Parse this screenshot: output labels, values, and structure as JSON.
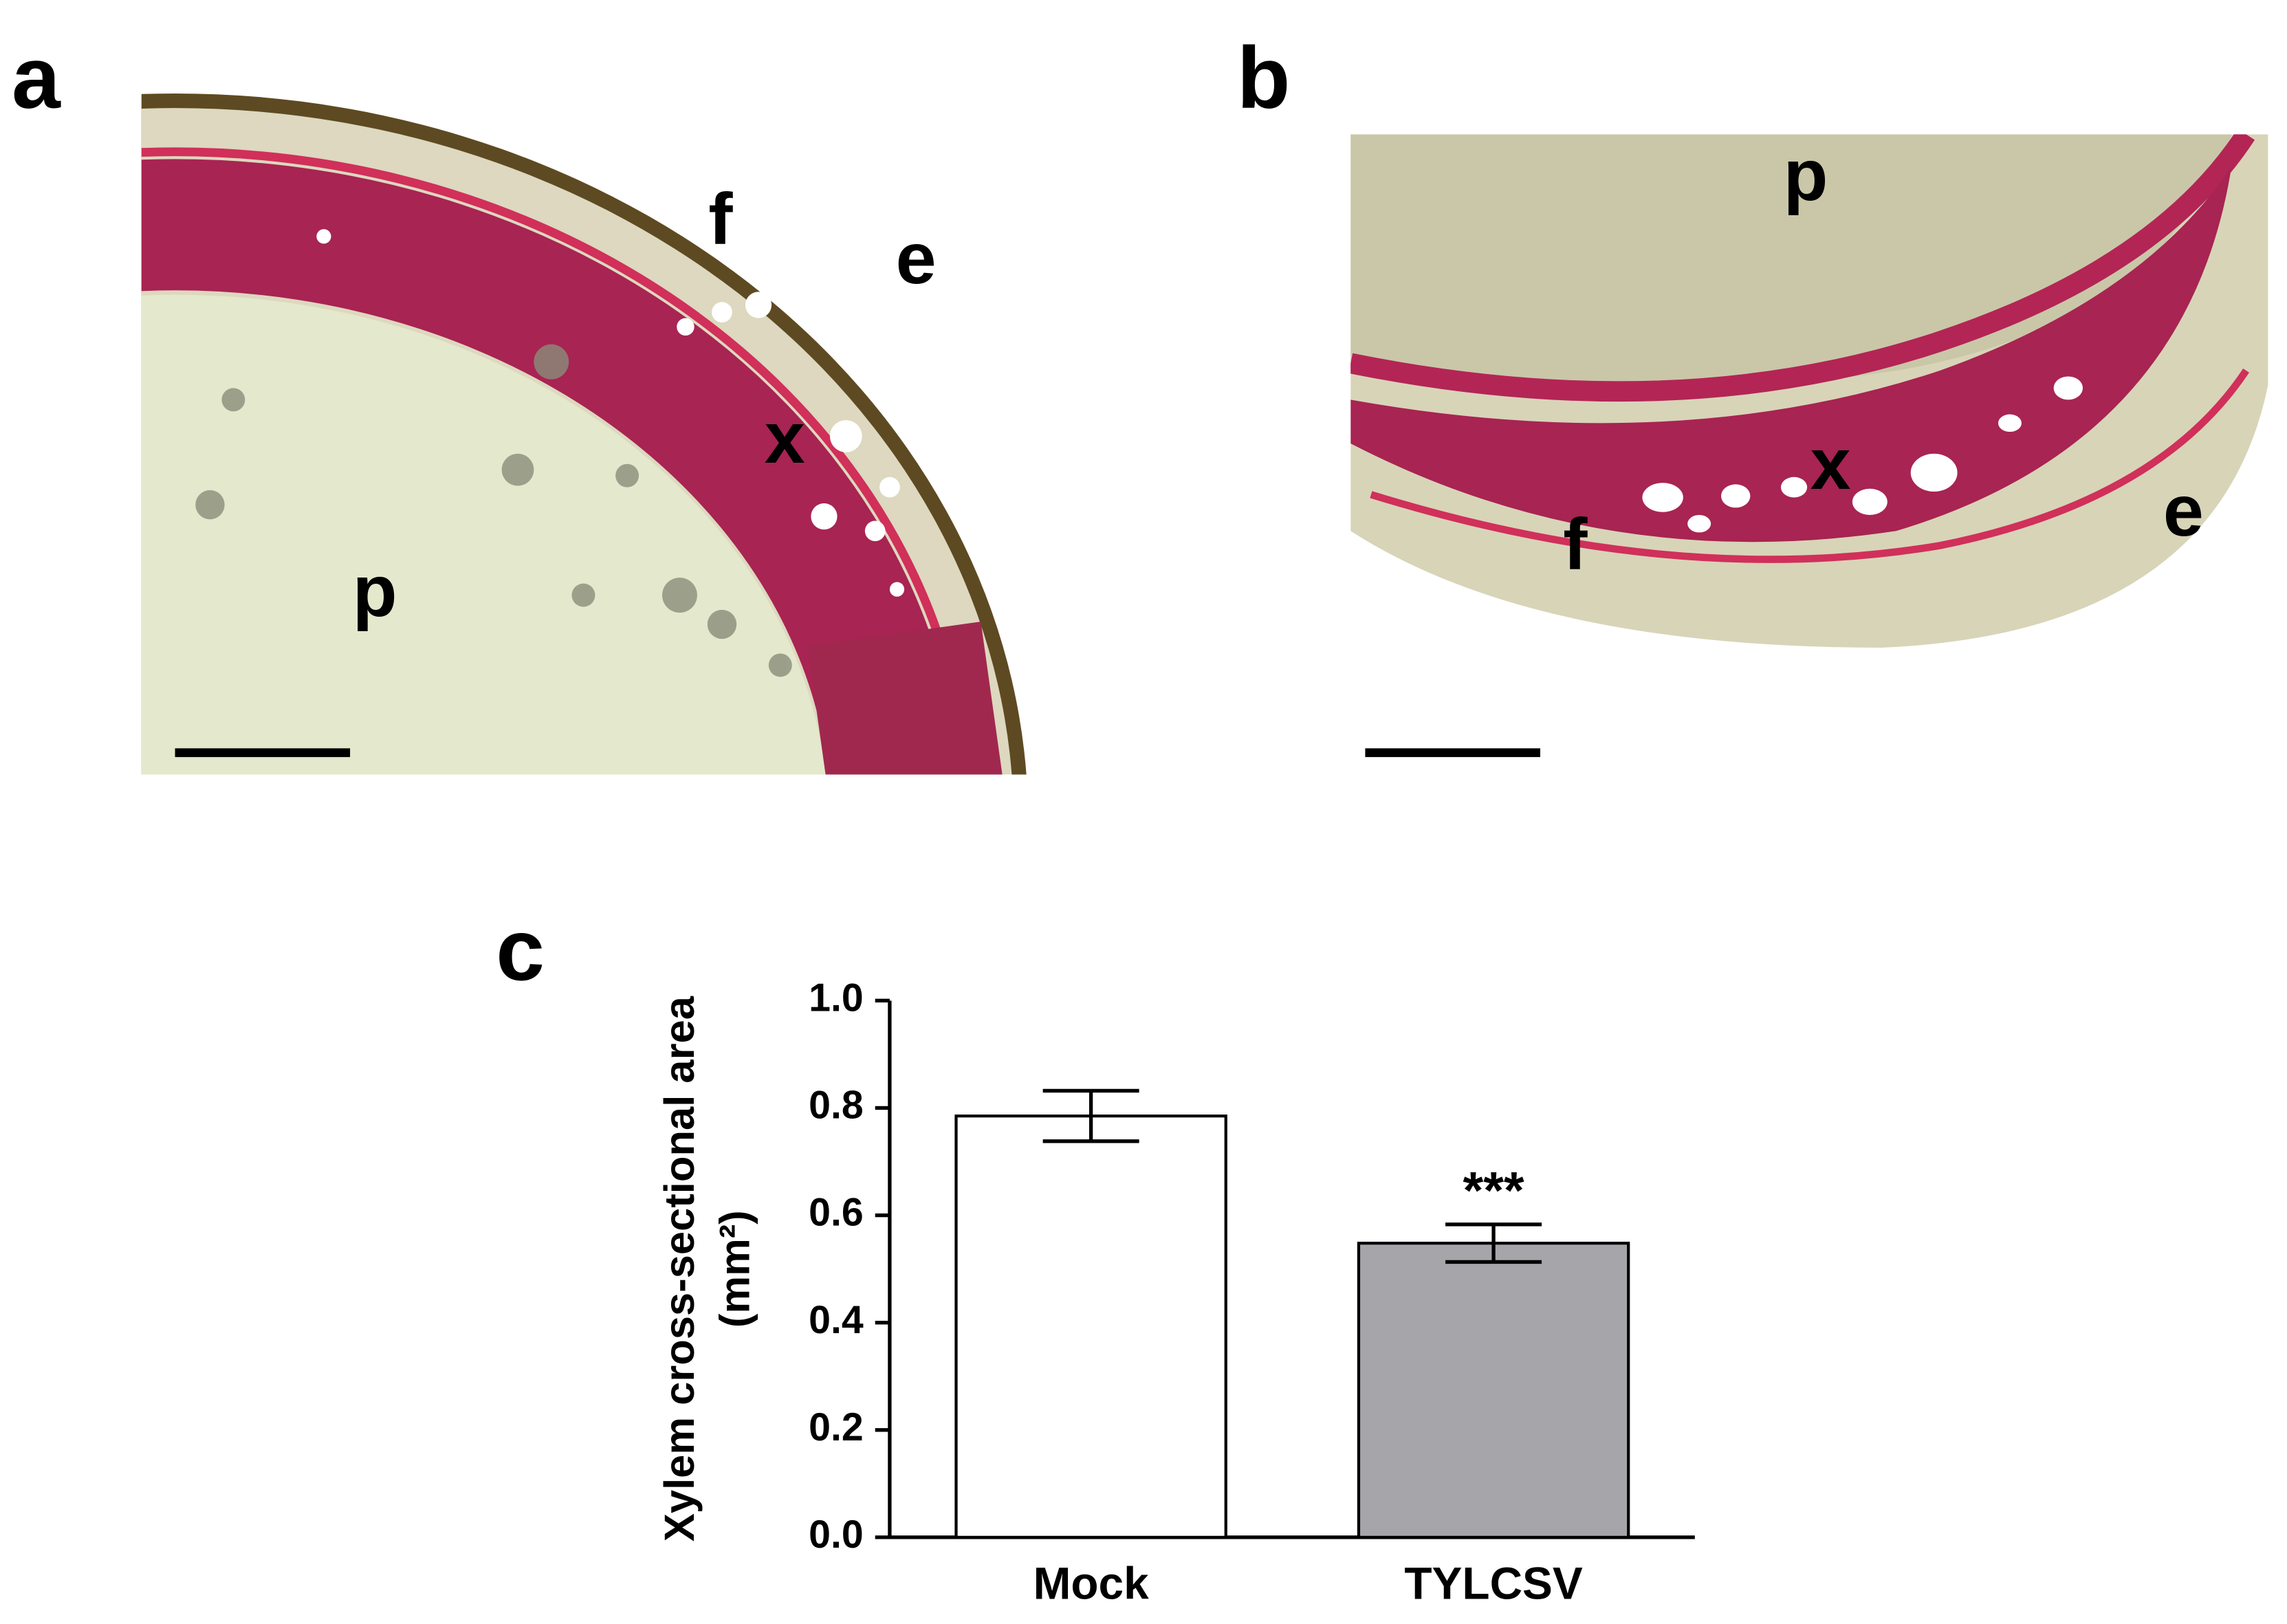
{
  "panel_labels": [
    "a",
    "b",
    "c"
  ],
  "micrographs": [
    {
      "labels": [
        "f",
        "e",
        "x",
        "p"
      ]
    },
    {
      "labels": [
        "p",
        "x",
        "f",
        "e"
      ]
    }
  ],
  "chart_data": {
    "type": "bar",
    "y_label": [
      "Xylem cross-sectional area",
      "(mm²)"
    ],
    "categories": [
      "Mock",
      "TYLCSV"
    ],
    "values": [
      0.785,
      0.548
    ],
    "errors": [
      0.047,
      0.035
    ],
    "colors": [
      "#ffffff",
      "#a6a6aa"
    ],
    "annotation": "***",
    "ylim": [
      0,
      1
    ],
    "yticks": [
      {
        "value": 0,
        "label": "0.0"
      },
      0.2,
      0.4,
      0.6,
      0.8,
      {
        "value": 1,
        "label": "1.0"
      }
    ]
  }
}
